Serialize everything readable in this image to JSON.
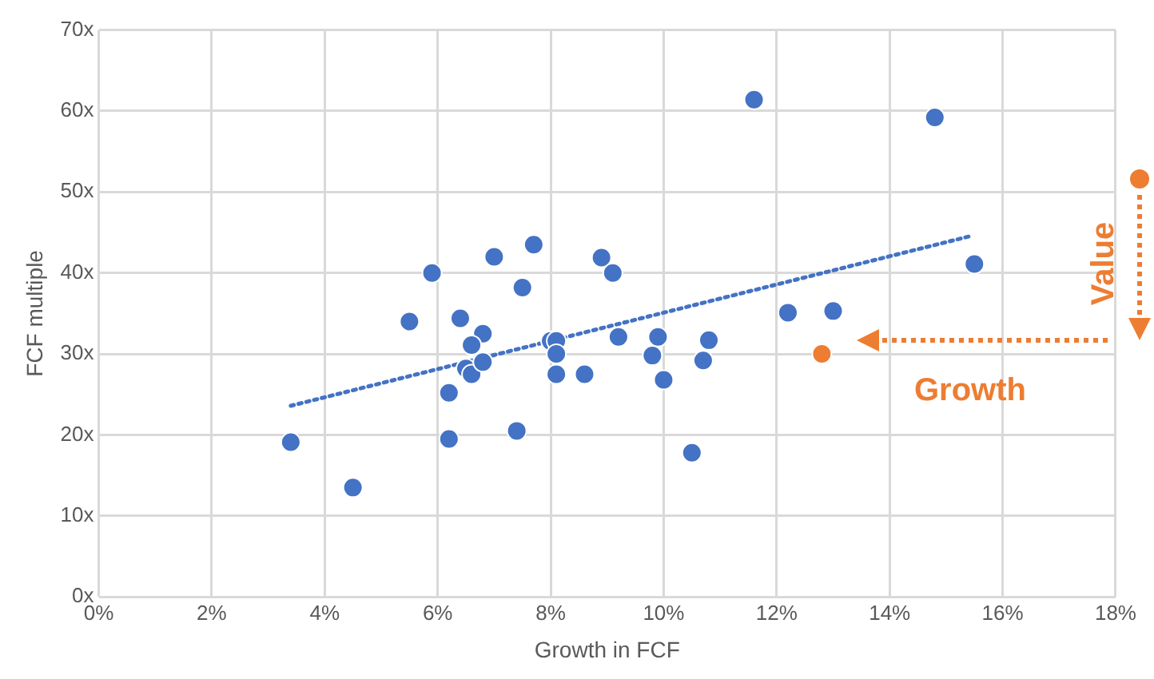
{
  "chart_data": {
    "type": "scatter",
    "xlabel": "Growth in FCF",
    "ylabel": "FCF multiple",
    "xlim": [
      0,
      18
    ],
    "xticks": [
      {
        "value": 0,
        "label": "0%"
      },
      {
        "value": 2,
        "label": "2%"
      },
      {
        "value": 4,
        "label": "4%"
      },
      {
        "value": 6,
        "label": "6%"
      },
      {
        "value": 8,
        "label": "8%"
      },
      {
        "value": 10,
        "label": "10%"
      },
      {
        "value": 12,
        "label": "12%"
      },
      {
        "value": 14,
        "label": "14%"
      },
      {
        "value": 16,
        "label": "16%"
      },
      {
        "value": 18,
        "label": "18%"
      }
    ],
    "ylim": [
      0,
      70
    ],
    "yticks": [
      {
        "value": 0,
        "label": "0x"
      },
      {
        "value": 10,
        "label": "10x"
      },
      {
        "value": 20,
        "label": "20x"
      },
      {
        "value": 30,
        "label": "30x"
      },
      {
        "value": 40,
        "label": "40x"
      },
      {
        "value": 50,
        "label": "50x"
      },
      {
        "value": 60,
        "label": "60x"
      },
      {
        "value": 70,
        "label": "70x"
      }
    ],
    "grid": true,
    "legend": false,
    "marker": "circle",
    "annotations": [
      "Value",
      "Growth"
    ],
    "series": [
      {
        "color": "#4472c4",
        "x": [
          7.0,
          7.7,
          5.9,
          7.5,
          5.5,
          6.4,
          6.8,
          6.6,
          6.5,
          6.6,
          6.8,
          6.2,
          3.4,
          6.2,
          7.4,
          4.5,
          8.9,
          9.1,
          8.0,
          8.1,
          8.1,
          8.1,
          8.6,
          9.2,
          9.9,
          9.8,
          10.0,
          10.8,
          10.7,
          10.5,
          11.6,
          14.8,
          15.5,
          12.2,
          13.0
        ],
        "values": [
          42,
          43.5,
          40,
          38.2,
          34,
          34.4,
          32.5,
          31.1,
          28.2,
          27.5,
          29,
          25.2,
          19.1,
          19.5,
          20.5,
          13.5,
          41.9,
          40,
          31.6,
          31.6,
          30,
          27.5,
          27.5,
          32.1,
          32.1,
          29.8,
          26.8,
          31.7,
          29.2,
          17.8,
          61.4,
          59.2,
          41.1,
          35.1,
          35.3
        ]
      },
      {
        "color": "#ed7d31",
        "x": [
          12.8
        ],
        "values": [
          30
        ]
      },
      {
        "type": "line",
        "color": "#4472c4",
        "line_style": "dotted",
        "marker": "none",
        "x": [
          3.4,
          15.4
        ],
        "values": [
          23.6,
          44.5
        ]
      }
    ]
  }
}
